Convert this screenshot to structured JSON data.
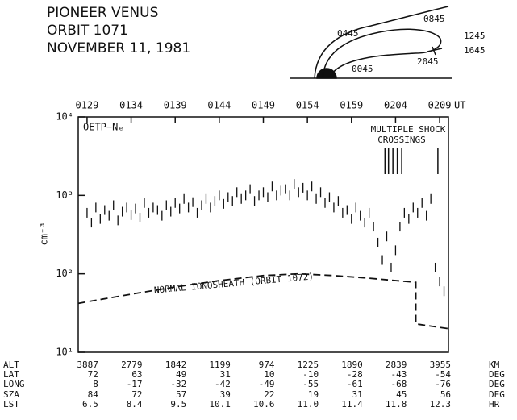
{
  "header": {
    "lines": [
      "PIONEER VENUS",
      "ORBIT 1071",
      "NOVEMBER 11, 1981"
    ]
  },
  "orbit_diagram": {
    "labels": [
      "0445",
      "0845",
      "1245",
      "1645",
      "2045",
      "0045"
    ]
  },
  "chart_data": {
    "type": "scatter",
    "y_label": "cm⁻³",
    "x_unit": "UT",
    "log_y": true,
    "xlim": [
      -1,
      41
    ],
    "ylim": [
      10,
      10000
    ],
    "xticks": [
      {
        "value": 0,
        "label": "0129"
      },
      {
        "value": 5,
        "label": "0134"
      },
      {
        "value": 10,
        "label": "0139"
      },
      {
        "value": 15,
        "label": "0144"
      },
      {
        "value": 20,
        "label": "0149"
      },
      {
        "value": 25,
        "label": "0154"
      },
      {
        "value": 30,
        "label": "0159"
      },
      {
        "value": 35,
        "label": "0204"
      },
      {
        "value": 40,
        "label": "0209"
      }
    ],
    "yticks": [
      {
        "value": 10,
        "label": "10¹"
      },
      {
        "value": 100,
        "label": "10²"
      },
      {
        "value": 1000,
        "label": "10³"
      },
      {
        "value": 10000,
        "label": "10⁴"
      }
    ],
    "annotations": {
      "instrument": "OETP−Nₑ",
      "shock_1": "MULTIPLE SHOCK",
      "shock_2": "CROSSINGS",
      "reference": "NORMAL IONOSHEATH (ORBIT 1072)"
    },
    "shock_crossings_x": [
      33.8,
      34.2,
      34.7,
      35.2,
      35.7,
      39.8
    ],
    "series": [
      {
        "name": "OETP−Nₑ",
        "color": "#111111",
        "x": [
          0,
          0.5,
          1,
          1.5,
          2,
          2.5,
          3,
          3.5,
          4,
          4.5,
          5,
          5.5,
          6,
          6.5,
          7,
          7.5,
          8,
          8.5,
          9,
          9.5,
          10,
          10.5,
          11,
          11.5,
          12,
          12.5,
          13,
          13.5,
          14,
          14.5,
          15,
          15.5,
          16,
          16.5,
          17,
          17.5,
          18,
          18.5,
          19,
          19.5,
          20,
          20.5,
          21,
          21.5,
          22,
          22.5,
          23,
          23.5,
          24,
          24.5,
          25,
          25.5,
          26,
          26.5,
          27,
          27.5,
          28,
          28.5,
          29,
          29.5,
          30,
          30.5,
          31,
          31.5,
          32,
          32.5,
          33,
          33.5,
          34,
          34.5,
          35,
          35.5,
          36,
          36.5,
          37,
          37.5,
          38,
          38.5,
          39,
          39.5,
          40,
          40.5
        ],
        "values": [
          600,
          450,
          700,
          500,
          650,
          550,
          750,
          480,
          620,
          700,
          560,
          680,
          520,
          800,
          600,
          700,
          650,
          550,
          750,
          620,
          800,
          680,
          900,
          700,
          820,
          600,
          750,
          900,
          700,
          850,
          1000,
          780,
          950,
          850,
          1100,
          900,
          1000,
          1200,
          850,
          1000,
          1100,
          950,
          1300,
          1000,
          1150,
          1200,
          1000,
          1400,
          1100,
          1250,
          1000,
          1300,
          900,
          1100,
          800,
          950,
          700,
          850,
          600,
          650,
          500,
          700,
          550,
          450,
          600,
          400,
          250,
          150,
          300,
          120,
          200,
          400,
          600,
          500,
          700,
          600,
          800,
          550,
          900,
          120,
          80,
          60
        ]
      },
      {
        "name": "NORMAL IONOSHEATH (ORBIT 1072)",
        "color": "#111111",
        "dashed": true,
        "x": [
          -1,
          0,
          5,
          10,
          15,
          20,
          24,
          28,
          32,
          35,
          37.3,
          37.3,
          41
        ],
        "values": [
          42,
          44,
          55,
          68,
          82,
          95,
          100,
          95,
          88,
          82,
          78,
          23,
          20
        ]
      }
    ]
  },
  "table": {
    "row_labels": [
      "ALT",
      "LAT",
      "LONG",
      "SZA",
      "LST"
    ],
    "units": [
      "KM",
      "DEG",
      "DEG",
      "DEG",
      "HR"
    ],
    "rows": [
      [
        "3887",
        "2779",
        "1842",
        "1199",
        "974",
        "1225",
        "1890",
        "2839",
        "3955"
      ],
      [
        "72",
        "63",
        "49",
        "31",
        "10",
        "-10",
        "-28",
        "-43",
        "-54"
      ],
      [
        "8",
        "-17",
        "-32",
        "-42",
        "-49",
        "-55",
        "-61",
        "-68",
        "-76"
      ],
      [
        "84",
        "72",
        "57",
        "39",
        "22",
        "19",
        "31",
        "45",
        "56"
      ],
      [
        "6.5",
        "8.4",
        "9.5",
        "10.1",
        "10.6",
        "11.0",
        "11.4",
        "11.8",
        "12.3"
      ]
    ]
  }
}
